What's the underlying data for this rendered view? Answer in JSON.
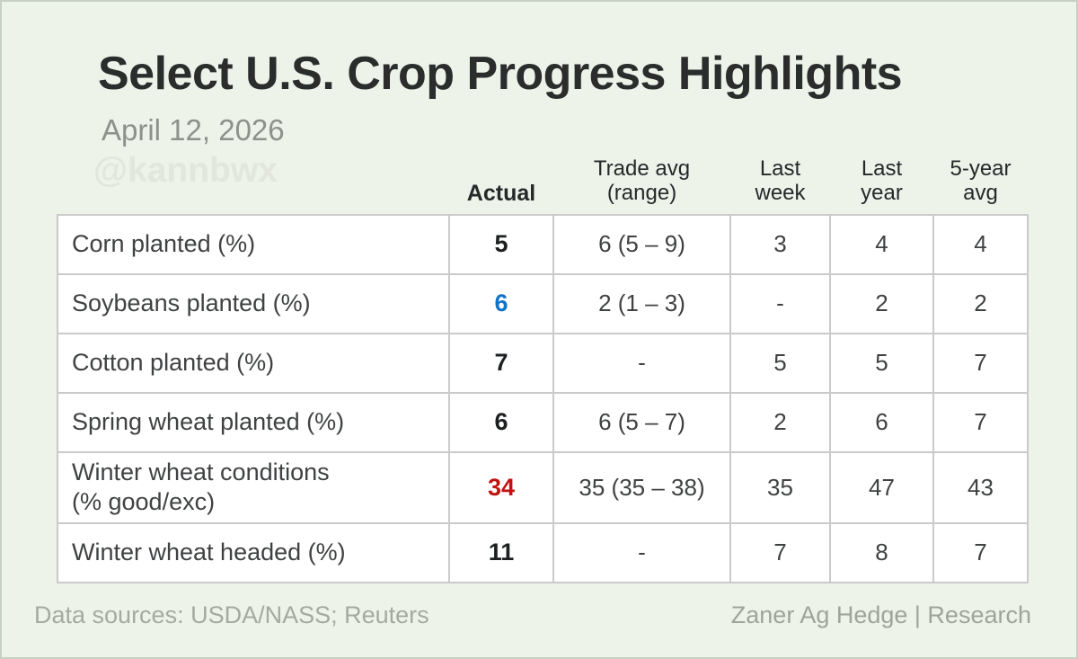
{
  "header": {
    "title": "Select U.S. Crop Progress Highlights",
    "date": "April 12, 2026",
    "watermark": "@kannbwx"
  },
  "colors": {
    "card_background": "#edf3e9",
    "card_border": "#c8cfc3",
    "cell_background": "#ffffff",
    "cell_border": "#cacaca",
    "actual_default": "#1d1f20",
    "actual_soybeans_blue": "#1173c8",
    "actual_winter_wheat_red": "#c11212",
    "muted_text": "#a6a99e"
  },
  "chart_data": {
    "type": "table",
    "title": "Select U.S. Crop Progress Highlights",
    "subtitle_date": "April 12, 2026",
    "watermark": "@kannbwx",
    "column_headers": [
      "Actual",
      "Trade avg\n(range)",
      "Last\nweek",
      "Last\nyear",
      "5-year\navg"
    ],
    "rows": [
      {
        "label": "Corn planted (%)",
        "actual": "5",
        "trade_avg_range": "6 (5 – 9)",
        "last_week": "3",
        "last_year": "4",
        "five_year_avg": "4"
      },
      {
        "label": "Soybeans planted (%)",
        "actual": "6",
        "trade_avg_range": "2 (1 – 3)",
        "last_week": "-",
        "last_year": "2",
        "five_year_avg": "2"
      },
      {
        "label": "Cotton planted (%)",
        "actual": "7",
        "trade_avg_range": "-",
        "last_week": "5",
        "last_year": "5",
        "five_year_avg": "7"
      },
      {
        "label": "Spring wheat planted (%)",
        "actual": "6",
        "trade_avg_range": "6 (5 – 7)",
        "last_week": "2",
        "last_year": "6",
        "five_year_avg": "7"
      },
      {
        "label": "Winter wheat conditions\n(% good/exc)",
        "actual": "34",
        "trade_avg_range": "35 (35 – 38)",
        "last_week": "35",
        "last_year": "47",
        "five_year_avg": "43"
      },
      {
        "label": "Winter wheat headed (%)",
        "actual": "11",
        "trade_avg_range": "-",
        "last_week": "7",
        "last_year": "8",
        "five_year_avg": "7"
      }
    ]
  },
  "footer": {
    "left": "Data sources: USDA/NASS; Reuters",
    "right": "Zaner Ag Hedge | Research"
  }
}
